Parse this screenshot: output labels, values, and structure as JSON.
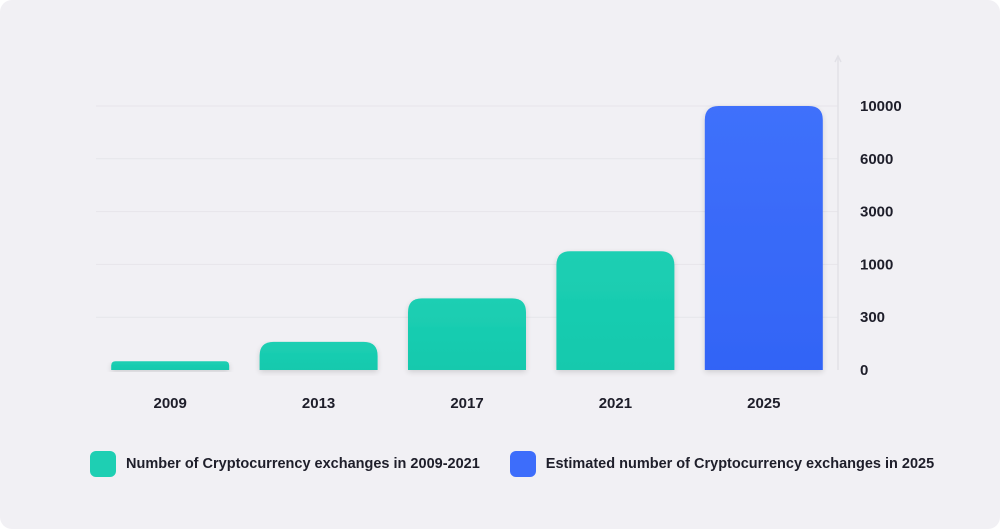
{
  "chart_data": {
    "type": "bar",
    "categories": [
      "2009",
      "2013",
      "2017",
      "2021",
      "2025"
    ],
    "series": [
      {
        "name": "Number of Cryptocurrency exchanges in 2009-2021",
        "color": "#1ecfb3",
        "values": [
          50,
          160,
          550,
          1500,
          null
        ]
      },
      {
        "name": "Estimated number of Cryptocurrency exchanges in 2025",
        "color": "#3d6dfb",
        "values": [
          null,
          null,
          null,
          null,
          10000
        ]
      }
    ],
    "y_ticks": [
      0,
      300,
      1000,
      3000,
      6000,
      10000
    ],
    "y_scale": "piecewise",
    "ylim": [
      0,
      10000
    ],
    "y_axis_position": "right",
    "grid": true,
    "legend_position": "bottom-left"
  }
}
